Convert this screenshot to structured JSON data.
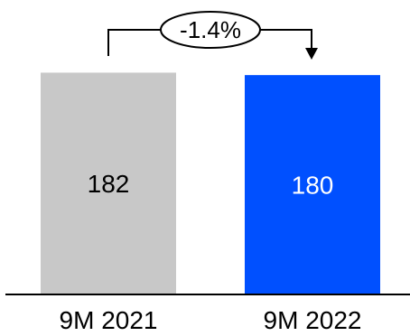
{
  "chart_data": {
    "type": "bar",
    "categories": [
      "9M 2021",
      "9M 2022"
    ],
    "values": [
      182,
      180
    ],
    "value_labels": [
      "182",
      "180"
    ],
    "change_label": "-1.4%",
    "ylim": [
      0,
      189
    ],
    "grid": false,
    "colors": {
      "bars": [
        "#c8c8c8",
        "#0050ff"
      ],
      "value_text": [
        "#000000",
        "#ffffff"
      ],
      "axis": "#000000",
      "connector": "#000000"
    }
  }
}
